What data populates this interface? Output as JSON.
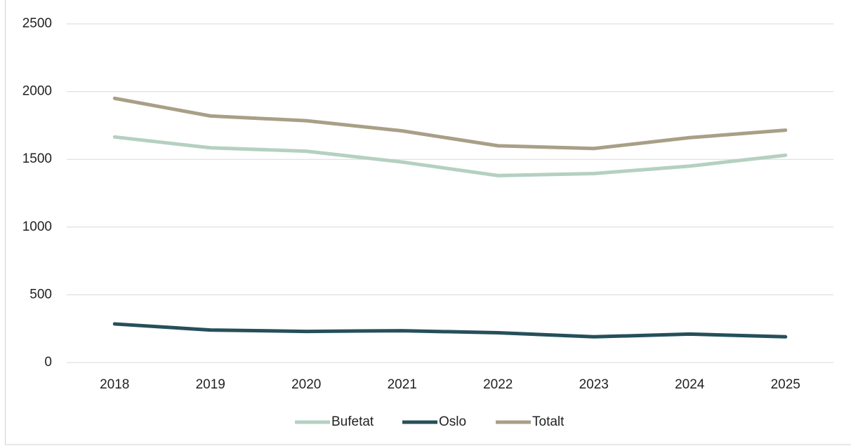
{
  "chart_data": {
    "type": "line",
    "categories": [
      "2018",
      "2019",
      "2020",
      "2021",
      "2022",
      "2023",
      "2024",
      "2025"
    ],
    "series": [
      {
        "name": "Bufetat",
        "color": "#b4d0c1",
        "values": [
          1665,
          1585,
          1560,
          1480,
          1380,
          1395,
          1450,
          1530
        ]
      },
      {
        "name": "Oslo",
        "color": "#264f5a",
        "values": [
          285,
          240,
          230,
          235,
          220,
          190,
          210,
          190
        ]
      },
      {
        "name": "Totalt",
        "color": "#a89f86",
        "values": [
          1950,
          1820,
          1785,
          1710,
          1600,
          1580,
          1660,
          1715
        ]
      }
    ],
    "ylim": [
      0,
      2500
    ],
    "yticks": [
      0,
      500,
      1000,
      1500,
      2000,
      2500
    ],
    "grid": true,
    "legend": "bottom"
  }
}
